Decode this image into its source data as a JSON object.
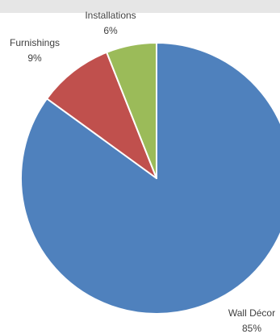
{
  "chart_data": {
    "type": "pie",
    "slices": [
      {
        "label": "Wall Décor",
        "pct_text": "85%",
        "value": 85,
        "color": "#4f81bd"
      },
      {
        "label": "Furnishings",
        "pct_text": "9%",
        "value": 9,
        "color": "#c0504d"
      },
      {
        "label": "Installations",
        "pct_text": "6%",
        "value": 6,
        "color": "#9bbb59"
      }
    ],
    "start_angle": "12 o'clock",
    "direction": "clockwise",
    "legend": "none",
    "data_labels": "outside"
  }
}
